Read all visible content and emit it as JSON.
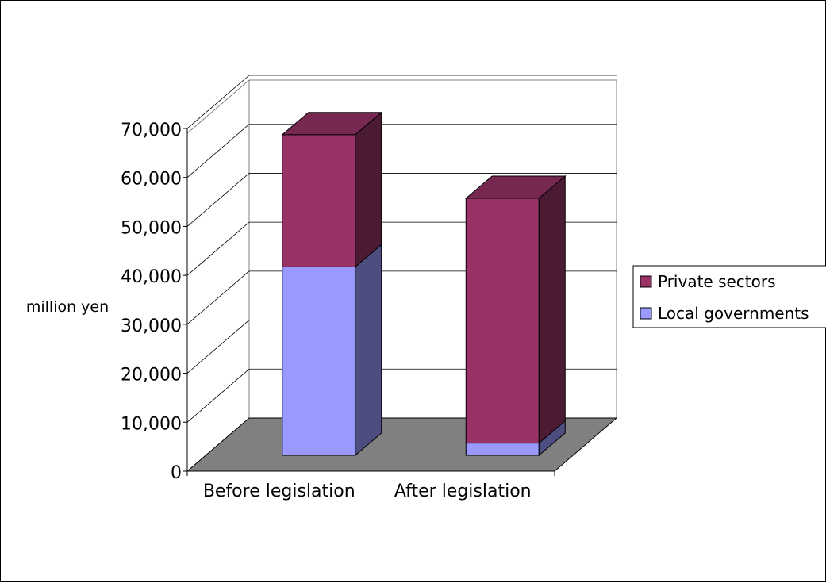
{
  "chart_data": {
    "type": "bar",
    "stacked": true,
    "three_d": true,
    "categories": [
      "Before legislation",
      "After legislation"
    ],
    "series": [
      {
        "name": "Local governments",
        "values": [
          38500,
          2500
        ],
        "color": "#9999ff"
      },
      {
        "name": "Private sectors",
        "values": [
          27000,
          50000
        ],
        "color": "#993366"
      }
    ],
    "ylabel": "million yen",
    "ylim": [
      0,
      70000
    ],
    "yticks": [
      "0",
      "10,000",
      "20,000",
      "30,000",
      "40,000",
      "50,000",
      "60,000",
      "70,000"
    ],
    "grid": true,
    "floor_color": "#808080",
    "legend_position": "right"
  }
}
